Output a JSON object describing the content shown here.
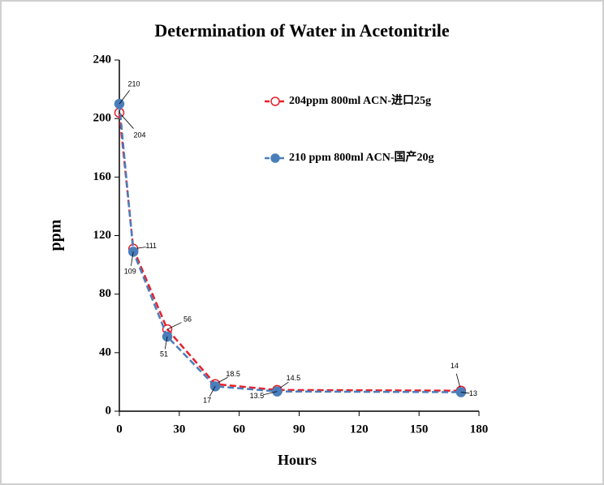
{
  "chart_data": {
    "type": "line",
    "title": "Determination of Water in Acetonitrile",
    "x_label": "Hours",
    "y_label": "ppm",
    "xlim": [
      0,
      180
    ],
    "xticks": [
      0,
      30,
      60,
      90,
      120,
      150,
      180
    ],
    "ylim": [
      0,
      240
    ],
    "yticks": [
      0,
      40,
      80,
      120,
      160,
      200,
      240
    ],
    "series": [
      {
        "name": "204ppm  800ml ACN-进口25g",
        "color": "#e8202a",
        "marker": "hollow",
        "x": [
          0,
          7,
          24,
          48,
          79,
          171
        ],
        "values": [
          204,
          111,
          56,
          18.5,
          14.5,
          14
        ]
      },
      {
        "name": "210 ppm 800ml ACN-国产20g",
        "color": "#4a7ebb",
        "marker": "filled",
        "x": [
          0,
          7,
          24,
          48,
          79,
          171
        ],
        "values": [
          210,
          109,
          51,
          17,
          13.5,
          13
        ]
      }
    ]
  }
}
